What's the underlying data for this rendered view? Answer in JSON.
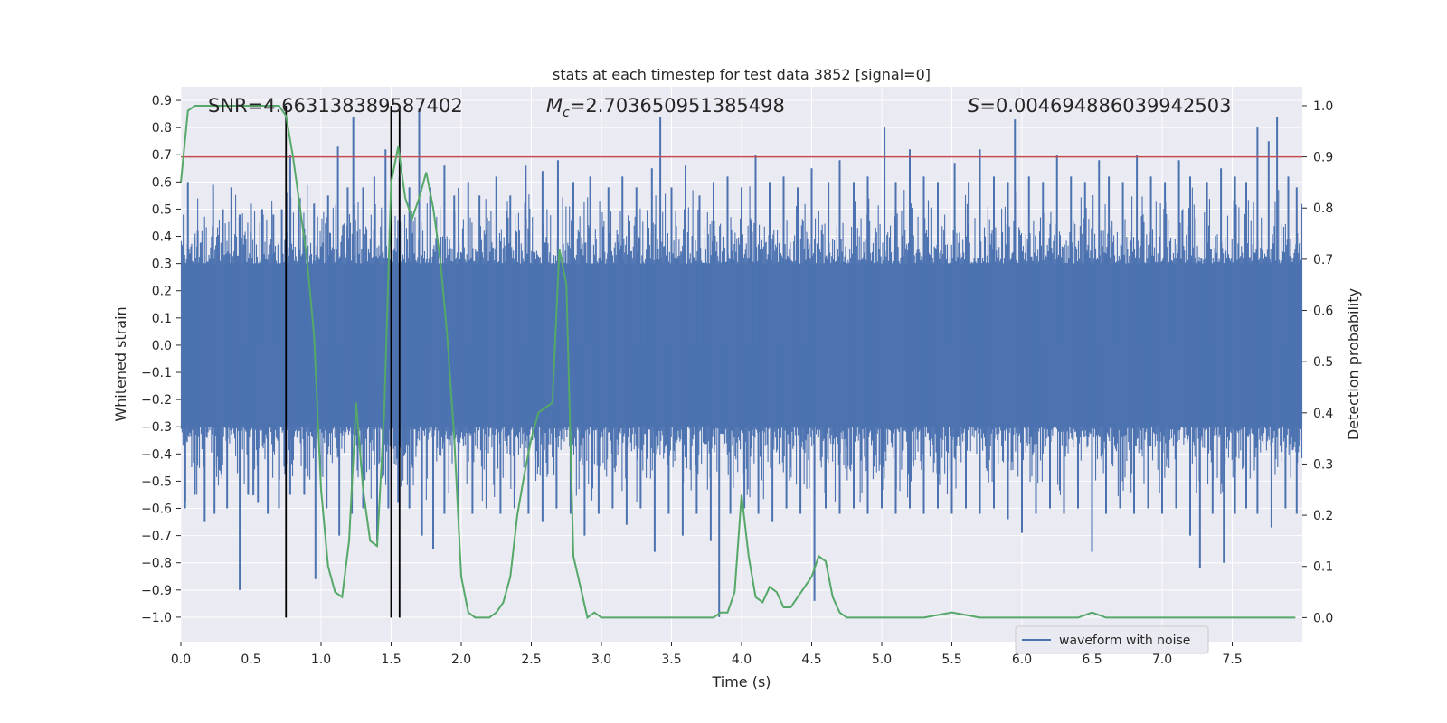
{
  "chart_data": {
    "type": "line",
    "title": "stats at each timestep for test data 3852 [signal=0]",
    "xlabel": "Time (s)",
    "ylabel": "Whitened strain",
    "y2label": "Detection probability",
    "xlim": [
      0.0,
      8.0
    ],
    "ylim": [
      -1.09,
      0.95
    ],
    "y2lim": [
      -0.047,
      1.037
    ],
    "xticks": [
      "0.0",
      "0.5",
      "1.0",
      "1.5",
      "2.0",
      "2.5",
      "3.0",
      "3.5",
      "4.0",
      "4.5",
      "5.0",
      "5.5",
      "6.0",
      "6.5",
      "7.0",
      "7.5"
    ],
    "yticks": [
      "0.9",
      "0.8",
      "0.7",
      "0.6",
      "0.5",
      "0.4",
      "0.3",
      "0.2",
      "0.1",
      "0.0",
      "-0.1",
      "-0.2",
      "-0.3",
      "-0.4",
      "-0.5",
      "-0.6",
      "-0.7",
      "-0.8",
      "-0.9",
      "-1.0"
    ],
    "y2ticks": [
      "1.0",
      "0.9",
      "0.8",
      "0.7",
      "0.6",
      "0.5",
      "0.4",
      "0.3",
      "0.2",
      "0.1",
      "0.0"
    ],
    "annotations": {
      "snr": "SNR=4.663138389587402",
      "mc_symbol": "M",
      "mc_sub": "c",
      "mc_value": "=2.703650951385498",
      "s_symbol": "S",
      "s_value": "=0.004694886039942503"
    },
    "threshold": {
      "value": 0.9,
      "axis": "right",
      "color": "#c44e52"
    },
    "vertical_lines": {
      "x": [
        0.75,
        1.5,
        1.56
      ],
      "color": "#000000"
    },
    "waveform": {
      "name": "waveform with noise",
      "color": "#4c72b0",
      "core_band": [
        -0.3,
        0.3
      ],
      "peaks_up": [
        [
          0.02,
          0.48
        ],
        [
          0.05,
          0.6
        ],
        [
          0.12,
          0.42
        ],
        [
          0.23,
          0.59
        ],
        [
          0.3,
          0.5
        ],
        [
          0.36,
          0.58
        ],
        [
          0.42,
          0.48
        ],
        [
          0.5,
          0.52
        ],
        [
          0.58,
          0.5
        ],
        [
          0.66,
          0.48
        ],
        [
          0.72,
          0.5
        ],
        [
          0.78,
          0.7
        ],
        [
          0.84,
          0.52
        ],
        [
          0.95,
          0.52
        ],
        [
          1.05,
          0.55
        ],
        [
          1.12,
          0.73
        ],
        [
          1.19,
          0.58
        ],
        [
          1.23,
          0.84
        ],
        [
          1.3,
          0.58
        ],
        [
          1.38,
          0.62
        ],
        [
          1.46,
          0.72
        ],
        [
          1.56,
          0.62
        ],
        [
          1.63,
          0.58
        ],
        [
          1.7,
          0.87
        ],
        [
          1.78,
          0.58
        ],
        [
          1.88,
          0.66
        ],
        [
          1.95,
          0.55
        ],
        [
          2.05,
          0.6
        ],
        [
          2.13,
          0.55
        ],
        [
          2.25,
          0.62
        ],
        [
          2.35,
          0.55
        ],
        [
          2.46,
          0.66
        ],
        [
          2.58,
          0.64
        ],
        [
          2.69,
          0.68
        ],
        [
          2.8,
          0.6
        ],
        [
          2.92,
          0.62
        ],
        [
          3.05,
          0.58
        ],
        [
          3.15,
          0.62
        ],
        [
          3.25,
          0.58
        ],
        [
          3.36,
          0.65
        ],
        [
          3.42,
          0.84
        ],
        [
          3.5,
          0.58
        ],
        [
          3.6,
          0.66
        ],
        [
          3.7,
          0.55
        ],
        [
          3.8,
          0.6
        ],
        [
          3.9,
          0.62
        ],
        [
          4.0,
          0.58
        ],
        [
          4.1,
          0.7
        ],
        [
          4.2,
          0.6
        ],
        [
          4.3,
          0.62
        ],
        [
          4.4,
          0.58
        ],
        [
          4.5,
          0.65
        ],
        [
          4.62,
          0.6
        ],
        [
          4.7,
          0.68
        ],
        [
          4.8,
          0.6
        ],
        [
          4.9,
          0.62
        ],
        [
          5.02,
          0.8
        ],
        [
          5.1,
          0.6
        ],
        [
          5.2,
          0.72
        ],
        [
          5.3,
          0.62
        ],
        [
          5.4,
          0.6
        ],
        [
          5.52,
          0.67
        ],
        [
          5.62,
          0.6
        ],
        [
          5.7,
          0.72
        ],
        [
          5.8,
          0.62
        ],
        [
          5.9,
          0.6
        ],
        [
          5.95,
          0.83
        ],
        [
          6.05,
          0.62
        ],
        [
          6.15,
          0.6
        ],
        [
          6.25,
          0.7
        ],
        [
          6.35,
          0.62
        ],
        [
          6.45,
          0.6
        ],
        [
          6.55,
          0.68
        ],
        [
          6.62,
          0.62
        ],
        [
          6.72,
          0.6
        ],
        [
          6.82,
          0.7
        ],
        [
          6.92,
          0.62
        ],
        [
          7.02,
          0.6
        ],
        [
          7.12,
          0.68
        ],
        [
          7.2,
          0.62
        ],
        [
          7.32,
          0.6
        ],
        [
          7.42,
          0.65
        ],
        [
          7.52,
          0.62
        ],
        [
          7.6,
          0.6
        ],
        [
          7.68,
          0.8
        ],
        [
          7.76,
          0.75
        ],
        [
          7.82,
          0.84
        ],
        [
          7.9,
          0.62
        ],
        [
          7.96,
          0.58
        ]
      ],
      "peaks_down": [
        [
          0.03,
          -0.6
        ],
        [
          0.1,
          -0.55
        ],
        [
          0.17,
          -0.65
        ],
        [
          0.24,
          -0.62
        ],
        [
          0.33,
          -0.6
        ],
        [
          0.42,
          -0.9
        ],
        [
          0.48,
          -0.55
        ],
        [
          0.55,
          -0.58
        ],
        [
          0.62,
          -0.62
        ],
        [
          0.7,
          -0.6
        ],
        [
          0.78,
          -0.55
        ],
        [
          0.88,
          -0.55
        ],
        [
          0.96,
          -0.86
        ],
        [
          1.04,
          -0.6
        ],
        [
          1.13,
          -0.7
        ],
        [
          1.22,
          -0.62
        ],
        [
          1.3,
          -0.6
        ],
        [
          1.4,
          -0.72
        ],
        [
          1.48,
          -0.6
        ],
        [
          1.55,
          -0.58
        ],
        [
          1.63,
          -0.6
        ],
        [
          1.72,
          -0.7
        ],
        [
          1.8,
          -0.75
        ],
        [
          1.88,
          -0.62
        ],
        [
          1.98,
          -0.6
        ],
        [
          2.08,
          -0.62
        ],
        [
          2.18,
          -0.6
        ],
        [
          2.28,
          -0.62
        ],
        [
          2.38,
          -0.6
        ],
        [
          2.48,
          -0.62
        ],
        [
          2.58,
          -0.65
        ],
        [
          2.68,
          -0.6
        ],
        [
          2.78,
          -0.62
        ],
        [
          2.88,
          -0.7
        ],
        [
          2.98,
          -0.62
        ],
        [
          3.08,
          -0.6
        ],
        [
          3.18,
          -0.66
        ],
        [
          3.28,
          -0.6
        ],
        [
          3.38,
          -0.76
        ],
        [
          3.48,
          -0.62
        ],
        [
          3.58,
          -0.7
        ],
        [
          3.68,
          -0.62
        ],
        [
          3.78,
          -0.72
        ],
        [
          3.84,
          -1.0
        ],
        [
          3.92,
          -0.62
        ],
        [
          4.02,
          -0.6
        ],
        [
          4.12,
          -0.62
        ],
        [
          4.22,
          -0.65
        ],
        [
          4.32,
          -0.6
        ],
        [
          4.42,
          -0.62
        ],
        [
          4.52,
          -0.94
        ],
        [
          4.6,
          -0.6
        ],
        [
          4.7,
          -0.62
        ],
        [
          4.8,
          -0.6
        ],
        [
          4.9,
          -0.62
        ],
        [
          5.0,
          -0.6
        ],
        [
          5.1,
          -0.62
        ],
        [
          5.2,
          -0.6
        ],
        [
          5.3,
          -0.62
        ],
        [
          5.4,
          -0.6
        ],
        [
          5.5,
          -0.62
        ],
        [
          5.6,
          -0.6
        ],
        [
          5.7,
          -0.62
        ],
        [
          5.8,
          -0.6
        ],
        [
          5.9,
          -0.64
        ],
        [
          6.0,
          -0.69
        ],
        [
          6.1,
          -0.62
        ],
        [
          6.2,
          -0.6
        ],
        [
          6.3,
          -0.62
        ],
        [
          6.4,
          -0.6
        ],
        [
          6.5,
          -0.76
        ],
        [
          6.6,
          -0.62
        ],
        [
          6.7,
          -0.6
        ],
        [
          6.8,
          -0.62
        ],
        [
          6.9,
          -0.6
        ],
        [
          7.0,
          -0.62
        ],
        [
          7.1,
          -0.6
        ],
        [
          7.2,
          -0.7
        ],
        [
          7.27,
          -0.82
        ],
        [
          7.36,
          -0.62
        ],
        [
          7.44,
          -0.8
        ],
        [
          7.52,
          -0.62
        ],
        [
          7.6,
          -0.6
        ],
        [
          7.68,
          -0.62
        ],
        [
          7.78,
          -0.67
        ],
        [
          7.88,
          -0.6
        ],
        [
          7.96,
          -0.62
        ]
      ]
    },
    "probability": {
      "color": "#55a868",
      "x": [
        0.0,
        0.05,
        0.1,
        0.2,
        0.3,
        0.4,
        0.5,
        0.6,
        0.7,
        0.75,
        0.8,
        0.85,
        0.9,
        0.95,
        1.0,
        1.05,
        1.1,
        1.15,
        1.2,
        1.25,
        1.3,
        1.35,
        1.4,
        1.45,
        1.5,
        1.55,
        1.6,
        1.65,
        1.7,
        1.75,
        1.8,
        1.85,
        1.9,
        1.95,
        2.0,
        2.05,
        2.1,
        2.15,
        2.2,
        2.25,
        2.3,
        2.35,
        2.4,
        2.45,
        2.5,
        2.55,
        2.6,
        2.65,
        2.7,
        2.75,
        2.8,
        2.85,
        2.9,
        2.95,
        3.0,
        3.05,
        3.1,
        3.15,
        3.2,
        3.3,
        3.4,
        3.5,
        3.6,
        3.7,
        3.8,
        3.85,
        3.9,
        3.95,
        4.0,
        4.05,
        4.1,
        4.15,
        4.2,
        4.25,
        4.3,
        4.35,
        4.4,
        4.45,
        4.5,
        4.55,
        4.6,
        4.65,
        4.7,
        4.75,
        4.8,
        4.85,
        4.9,
        4.95,
        5.0,
        5.1,
        5.3,
        5.5,
        5.7,
        5.8,
        5.9,
        6.0,
        6.1,
        6.2,
        6.3,
        6.4,
        6.5,
        6.6,
        6.7,
        6.8,
        6.9,
        7.0,
        7.1,
        7.2,
        7.3,
        7.4,
        7.5,
        7.6,
        7.7,
        7.8,
        7.9,
        7.95
      ],
      "y": [
        0.85,
        0.99,
        1.0,
        1.0,
        1.0,
        1.0,
        1.0,
        1.0,
        1.0,
        0.98,
        0.9,
        0.8,
        0.7,
        0.55,
        0.25,
        0.1,
        0.05,
        0.04,
        0.15,
        0.42,
        0.25,
        0.15,
        0.14,
        0.4,
        0.85,
        0.92,
        0.82,
        0.78,
        0.82,
        0.87,
        0.8,
        0.7,
        0.55,
        0.35,
        0.08,
        0.01,
        0.0,
        0.0,
        0.0,
        0.01,
        0.03,
        0.08,
        0.2,
        0.28,
        0.35,
        0.4,
        0.41,
        0.42,
        0.72,
        0.65,
        0.12,
        0.06,
        0.0,
        0.01,
        0.0,
        0.0,
        0.0,
        0.0,
        0.0,
        0.0,
        0.0,
        0.0,
        0.0,
        0.0,
        0.0,
        0.01,
        0.01,
        0.05,
        0.24,
        0.12,
        0.04,
        0.03,
        0.06,
        0.05,
        0.02,
        0.02,
        0.04,
        0.06,
        0.08,
        0.12,
        0.11,
        0.04,
        0.01,
        0.0,
        0.0,
        0.0,
        0.0,
        0.0,
        0.0,
        0.0,
        0.0,
        0.01,
        0.0,
        0.0,
        0.0,
        0.0,
        0.0,
        0.0,
        0.0,
        0.0,
        0.01,
        0.0,
        0.0,
        0.0,
        0.0,
        0.0,
        0.0,
        0.0,
        0.0,
        0.0,
        0.0,
        0.0,
        0.0,
        0.0,
        0.0,
        0.0
      ]
    },
    "legend": {
      "label": "waveform with noise",
      "position": "lower-right"
    }
  }
}
